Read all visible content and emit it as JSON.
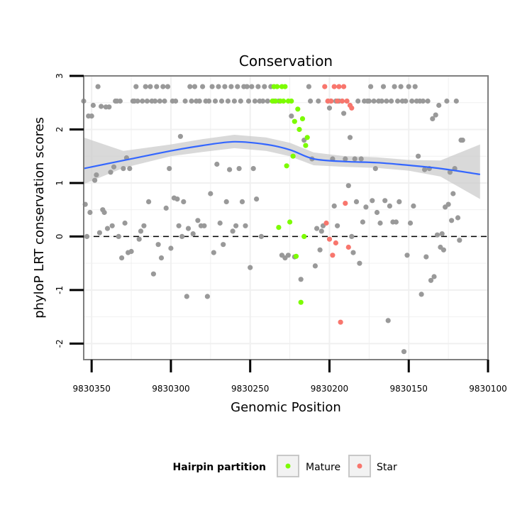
{
  "chart_data": {
    "type": "scatter",
    "title": "Conservation",
    "xlabel": "Genomic Position",
    "ylabel": "phyloP LRT conservation scores",
    "xlim": [
      9830355,
      9830100
    ],
    "ylim": [
      -2.3,
      3.0
    ],
    "x_ticks": [
      9830350,
      9830300,
      9830250,
      9830200,
      9830150,
      9830100
    ],
    "x_tick_labels": [
      "9830350",
      "9830300",
      "9830250",
      "9830200",
      "9830150",
      "9830100"
    ],
    "y_ticks": [
      -2,
      -1,
      0,
      1,
      2,
      3
    ],
    "y_tick_labels": [
      "-2",
      "-1",
      "0",
      "1",
      "2",
      "3"
    ],
    "reference_line": {
      "y": 0,
      "style": "dashed"
    },
    "colors": {
      "Other": "#999999",
      "Mature": "#7CFC00",
      "Star": "#F8766D",
      "smooth": "#3366FF",
      "band": "#cccccc"
    },
    "legend": {
      "title": "Hairpin partition",
      "entries": [
        {
          "label": "Mature",
          "color": "#7CFC00"
        },
        {
          "label": "Star",
          "color": "#F8766D"
        }
      ]
    },
    "series": [
      {
        "name": "Other",
        "points": [
          [
            9830355,
            2.53
          ],
          [
            9830354,
            0.6
          ],
          [
            9830353,
            0
          ],
          [
            9830352,
            2.25
          ],
          [
            9830351,
            0.45
          ],
          [
            9830350,
            2.25
          ],
          [
            9830349,
            2.45
          ],
          [
            9830348,
            1.05
          ],
          [
            9830347,
            1.15
          ],
          [
            9830346,
            2.8
          ],
          [
            9830345,
            0.07
          ],
          [
            9830344,
            2.43
          ],
          [
            9830343,
            0.5
          ],
          [
            9830342,
            0.45
          ],
          [
            9830341,
            2.42
          ],
          [
            9830340,
            0.15
          ],
          [
            9830339,
            2.42
          ],
          [
            9830338,
            1.2
          ],
          [
            9830337,
            0.2
          ],
          [
            9830336,
            1.3
          ],
          [
            9830335,
            2.53
          ],
          [
            9830334,
            2.53
          ],
          [
            9830333,
            0
          ],
          [
            9830332,
            2.53
          ],
          [
            9830331,
            -0.4
          ],
          [
            9830330,
            1.27
          ],
          [
            9830329,
            0.25
          ],
          [
            9830328,
            1.47
          ],
          [
            9830327,
            -0.3
          ],
          [
            9830326,
            1.27
          ],
          [
            9830325,
            -0.28
          ],
          [
            9830324,
            2.53
          ],
          [
            9830323,
            2.53
          ],
          [
            9830322,
            2.8
          ],
          [
            9830321,
            2.53
          ],
          [
            9830320,
            -0.05
          ],
          [
            9830319,
            0.1
          ],
          [
            9830318,
            2.53
          ],
          [
            9830317,
            0.2
          ],
          [
            9830316,
            2.8
          ],
          [
            9830315,
            2.53
          ],
          [
            9830314,
            0.65
          ],
          [
            9830313,
            2.8
          ],
          [
            9830312,
            2.53
          ],
          [
            9830311,
            -0.7
          ],
          [
            9830310,
            2.53
          ],
          [
            9830309,
            2.8
          ],
          [
            9830308,
            -0.15
          ],
          [
            9830307,
            2.53
          ],
          [
            9830306,
            -0.4
          ],
          [
            9830305,
            2.8
          ],
          [
            9830304,
            2.53
          ],
          [
            9830303,
            0.53
          ],
          [
            9830302,
            2.8
          ],
          [
            9830301,
            1.27
          ],
          [
            9830300,
            -0.22
          ],
          [
            9830299,
            2.53
          ],
          [
            9830298,
            0.72
          ],
          [
            9830297,
            2.53
          ],
          [
            9830296,
            0.7
          ],
          [
            9830295,
            0.2
          ],
          [
            9830294,
            1.87
          ],
          [
            9830293,
            0
          ],
          [
            9830292,
            0.65
          ],
          [
            9830291,
            2.53
          ],
          [
            9830290,
            -1.12
          ],
          [
            9830289,
            0.15
          ],
          [
            9830288,
            2.8
          ],
          [
            9830287,
            2.53
          ],
          [
            9830286,
            0.05
          ],
          [
            9830285,
            2.8
          ],
          [
            9830284,
            2.53
          ],
          [
            9830283,
            0.3
          ],
          [
            9830282,
            2.53
          ],
          [
            9830281,
            0.2
          ],
          [
            9830280,
            2.8
          ],
          [
            9830279,
            0.2
          ],
          [
            9830278,
            2.53
          ],
          [
            9830277,
            -1.12
          ],
          [
            9830276,
            2.53
          ],
          [
            9830275,
            0.8
          ],
          [
            9830274,
            2.8
          ],
          [
            9830273,
            -0.3
          ],
          [
            9830272,
            2.53
          ],
          [
            9830271,
            1.35
          ],
          [
            9830270,
            2.8
          ],
          [
            9830269,
            0.25
          ],
          [
            9830268,
            2.53
          ],
          [
            9830267,
            -0.15
          ],
          [
            9830266,
            2.8
          ],
          [
            9830265,
            0.65
          ],
          [
            9830264,
            2.53
          ],
          [
            9830263,
            1.25
          ],
          [
            9830262,
            2.8
          ],
          [
            9830261,
            0.1
          ],
          [
            9830260,
            2.53
          ],
          [
            9830259,
            0.2
          ],
          [
            9830258,
            2.8
          ],
          [
            9830257,
            1.27
          ],
          [
            9830256,
            2.53
          ],
          [
            9830255,
            0.65
          ],
          [
            9830254,
            2.8
          ],
          [
            9830253,
            0.2
          ],
          [
            9830252,
            2.8
          ],
          [
            9830251,
            2.53
          ],
          [
            9830250,
            -0.58
          ],
          [
            9830249,
            2.8
          ],
          [
            9830248,
            1.27
          ],
          [
            9830247,
            2.53
          ],
          [
            9830246,
            0.7
          ],
          [
            9830245,
            2.8
          ],
          [
            9830244,
            2.53
          ],
          [
            9830243,
            0
          ],
          [
            9830242,
            2.53
          ],
          [
            9830241,
            2.8
          ],
          [
            9830239,
            2.53
          ],
          [
            9830237,
            2.8
          ],
          [
            9830235,
            2.53
          ],
          [
            9830232,
            2.53
          ],
          [
            9830230,
            -0.35
          ],
          [
            9830228,
            -0.4
          ],
          [
            9830226,
            -0.35
          ],
          [
            9830224,
            2.25
          ],
          [
            9830222,
            -0.38
          ],
          [
            9830218,
            -0.8
          ],
          [
            9830216,
            1.8
          ],
          [
            9830213,
            2.8
          ],
          [
            9830212,
            2.53
          ],
          [
            9830211,
            1.45
          ],
          [
            9830209,
            -0.55
          ],
          [
            9830208,
            0.15
          ],
          [
            9830207,
            2.53
          ],
          [
            9830206,
            -0.25
          ],
          [
            9830205,
            0.1
          ],
          [
            9830204,
            0.2
          ],
          [
            9830201,
            2.53
          ],
          [
            9830200,
            2.4
          ],
          [
            9830199,
            2.53
          ],
          [
            9830198,
            1.45
          ],
          [
            9830197,
            0.57
          ],
          [
            9830196,
            2.53
          ],
          [
            9830195,
            0.2
          ],
          [
            9830194,
            2.53
          ],
          [
            9830192,
            2.53
          ],
          [
            9830191,
            2.3
          ],
          [
            9830190,
            1.45
          ],
          [
            9830189,
            2.53
          ],
          [
            9830188,
            0.95
          ],
          [
            9830187,
            1.85
          ],
          [
            9830186,
            0
          ],
          [
            9830185,
            -0.3
          ],
          [
            9830184,
            1.45
          ],
          [
            9830183,
            0.65
          ],
          [
            9830182,
            2.53
          ],
          [
            9830181,
            -0.5
          ],
          [
            9830180,
            1.45
          ],
          [
            9830179,
            0.27
          ],
          [
            9830178,
            2.53
          ],
          [
            9830177,
            0.55
          ],
          [
            9830176,
            2.53
          ],
          [
            9830175,
            2.53
          ],
          [
            9830174,
            2.8
          ],
          [
            9830173,
            0.67
          ],
          [
            9830172,
            2.53
          ],
          [
            9830171,
            1.27
          ],
          [
            9830170,
            0.45
          ],
          [
            9830169,
            2.53
          ],
          [
            9830168,
            0.25
          ],
          [
            9830167,
            2.53
          ],
          [
            9830166,
            2.8
          ],
          [
            9830165,
            0.67
          ],
          [
            9830164,
            2.53
          ],
          [
            9830163,
            -1.57
          ],
          [
            9830162,
            0.57
          ],
          [
            9830161,
            2.53
          ],
          [
            9830160,
            0.27
          ],
          [
            9830159,
            2.8
          ],
          [
            9830158,
            0.27
          ],
          [
            9830157,
            2.53
          ],
          [
            9830156,
            0.65
          ],
          [
            9830155,
            2.8
          ],
          [
            9830154,
            2.53
          ],
          [
            9830153,
            -2.15
          ],
          [
            9830152,
            2.53
          ],
          [
            9830151,
            -0.35
          ],
          [
            9830150,
            2.8
          ],
          [
            9830149,
            0.25
          ],
          [
            9830148,
            2.53
          ],
          [
            9830147,
            0.57
          ],
          [
            9830146,
            2.8
          ],
          [
            9830145,
            2.53
          ],
          [
            9830144,
            1.5
          ],
          [
            9830143,
            2.53
          ],
          [
            9830142,
            -1.08
          ],
          [
            9830141,
            2.53
          ],
          [
            9830140,
            1.25
          ],
          [
            9830139,
            -0.38
          ],
          [
            9830138,
            2.53
          ],
          [
            9830137,
            1.27
          ],
          [
            9830136,
            -0.82
          ],
          [
            9830135,
            2.2
          ],
          [
            9830134,
            -0.75
          ],
          [
            9830133,
            2.27
          ],
          [
            9830132,
            0.03
          ],
          [
            9830131,
            2.45
          ],
          [
            9830130,
            -0.2
          ],
          [
            9830129,
            0.05
          ],
          [
            9830128,
            -0.25
          ],
          [
            9830127,
            0.55
          ],
          [
            9830126,
            2.53
          ],
          [
            9830125,
            0.6
          ],
          [
            9830124,
            1.2
          ],
          [
            9830123,
            0.3
          ],
          [
            9830122,
            0.8
          ],
          [
            9830121,
            1.27
          ],
          [
            9830120,
            2.53
          ],
          [
            9830119,
            0.35
          ],
          [
            9830118,
            -0.07
          ],
          [
            9830117,
            1.8
          ],
          [
            9830116,
            1.8
          ]
        ]
      },
      {
        "name": "Mature",
        "points": [
          [
            9830236,
            2.53
          ],
          [
            9830235,
            2.8
          ],
          [
            9830234,
            2.53
          ],
          [
            9830233,
            2.8
          ],
          [
            9830232,
            0.17
          ],
          [
            9830231,
            2.53
          ],
          [
            9830230,
            2.8
          ],
          [
            9830229,
            2.53
          ],
          [
            9830228,
            2.8
          ],
          [
            9830227,
            1.32
          ],
          [
            9830226,
            2.53
          ],
          [
            9830225,
            0.27
          ],
          [
            9830224,
            2.53
          ],
          [
            9830223,
            1.5
          ],
          [
            9830222,
            2.15
          ],
          [
            9830221,
            -0.37
          ],
          [
            9830220,
            2.38
          ],
          [
            9830219,
            2.0
          ],
          [
            9830218,
            -1.23
          ],
          [
            9830217,
            2.2
          ],
          [
            9830216,
            0
          ],
          [
            9830215,
            1.7
          ],
          [
            9830214,
            1.85
          ]
        ]
      },
      {
        "name": "Star",
        "points": [
          [
            9830203,
            2.8
          ],
          [
            9830202,
            0.25
          ],
          [
            9830201,
            2.53
          ],
          [
            9830200,
            -0.05
          ],
          [
            9830199,
            2.53
          ],
          [
            9830198,
            -0.35
          ],
          [
            9830197,
            2.8
          ],
          [
            9830196,
            -0.12
          ],
          [
            9830195,
            2.53
          ],
          [
            9830194,
            2.8
          ],
          [
            9830193,
            -1.6
          ],
          [
            9830192,
            2.53
          ],
          [
            9830191,
            2.8
          ],
          [
            9830190,
            0.62
          ],
          [
            9830189,
            2.53
          ],
          [
            9830188,
            -0.2
          ],
          [
            9830187,
            2.45
          ],
          [
            9830186,
            2.4
          ]
        ]
      }
    ],
    "smooth_fit": {
      "x": [
        9830355,
        9830330,
        9830300,
        9830280,
        9830260,
        9830240,
        9830225,
        9830210,
        9830190,
        9830170,
        9830150,
        9830130,
        9830105
      ],
      "y": [
        1.27,
        1.42,
        1.6,
        1.7,
        1.77,
        1.72,
        1.62,
        1.45,
        1.4,
        1.38,
        1.33,
        1.27,
        1.16
      ],
      "lower": [
        0.98,
        1.28,
        1.5,
        1.58,
        1.65,
        1.6,
        1.5,
        1.33,
        1.3,
        1.28,
        1.23,
        1.12,
        0.7
      ],
      "upper": [
        1.85,
        1.6,
        1.72,
        1.82,
        1.9,
        1.85,
        1.75,
        1.57,
        1.5,
        1.48,
        1.43,
        1.42,
        1.72
      ]
    }
  }
}
